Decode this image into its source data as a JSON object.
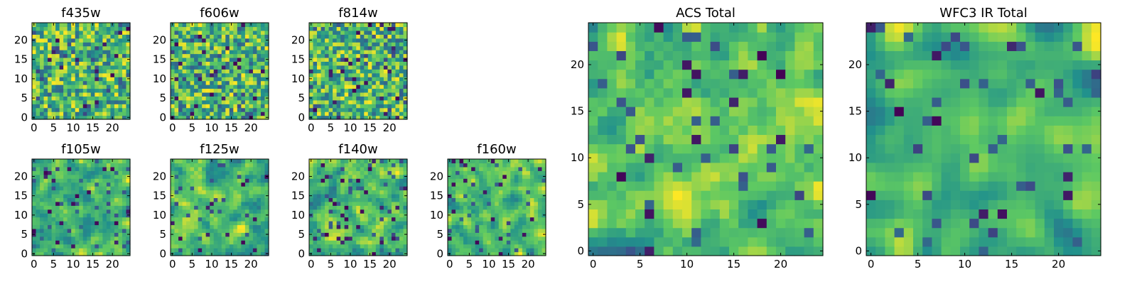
{
  "figure": {
    "description_colormap": "viridis"
  },
  "colormap": [
    "#440154",
    "#3b528b",
    "#21918c",
    "#5ec962",
    "#fde725"
  ],
  "chart_data": [
    {
      "type": "heatmap",
      "title": "f435w",
      "size": 25,
      "seed": 11,
      "smooth": 0,
      "darkFrac": 0.03,
      "xticks": [
        0,
        5,
        10,
        15,
        20
      ],
      "yticks": [
        0,
        5,
        10,
        15,
        20
      ],
      "xlim": [
        0,
        24
      ],
      "ylim": [
        0,
        24
      ]
    },
    {
      "type": "heatmap",
      "title": "f606w",
      "size": 25,
      "seed": 23,
      "smooth": 0,
      "darkFrac": 0.04,
      "xticks": [
        0,
        5,
        10,
        15,
        20
      ],
      "yticks": [
        0,
        5,
        10,
        15,
        20
      ],
      "xlim": [
        0,
        24
      ],
      "ylim": [
        0,
        24
      ]
    },
    {
      "type": "heatmap",
      "title": "f814w",
      "size": 25,
      "seed": 37,
      "smooth": 0,
      "darkFrac": 0.04,
      "xticks": [
        0,
        5,
        10,
        15,
        20
      ],
      "yticks": [
        0,
        5,
        10,
        15,
        20
      ],
      "xlim": [
        0,
        24
      ],
      "ylim": [
        0,
        24
      ]
    },
    {
      "type": "heatmap",
      "title": "f105w",
      "size": 25,
      "seed": 41,
      "smooth": 1,
      "darkFrac": 0.03,
      "xticks": [
        0,
        5,
        10,
        15,
        20
      ],
      "yticks": [
        0,
        5,
        10,
        15,
        20
      ],
      "xlim": [
        0,
        24
      ],
      "ylim": [
        0,
        24
      ]
    },
    {
      "type": "heatmap",
      "title": "f125w",
      "size": 25,
      "seed": 53,
      "smooth": 1,
      "darkFrac": 0.03,
      "xticks": [
        0,
        5,
        10,
        15,
        20
      ],
      "yticks": [
        0,
        5,
        10,
        15,
        20
      ],
      "xlim": [
        0,
        24
      ],
      "ylim": [
        0,
        24
      ]
    },
    {
      "type": "heatmap",
      "title": "f140w",
      "size": 25,
      "seed": 67,
      "smooth": 1,
      "darkFrac": 0.03,
      "xticks": [
        0,
        5,
        10,
        15,
        20
      ],
      "yticks": [
        0,
        5,
        10,
        15,
        20
      ],
      "xlim": [
        0,
        24
      ],
      "ylim": [
        0,
        24
      ]
    },
    {
      "type": "heatmap",
      "title": "f160w",
      "size": 25,
      "seed": 79,
      "smooth": 1,
      "darkFrac": 0.04,
      "xticks": [
        0,
        5,
        10,
        15,
        20
      ],
      "yticks": [
        0,
        5,
        10,
        15,
        20
      ],
      "xlim": [
        0,
        24
      ],
      "ylim": [
        0,
        24
      ]
    },
    {
      "type": "heatmap",
      "title": "ACS Total",
      "size": 25,
      "seed": 97,
      "smooth": 1,
      "darkFrac": 0.03,
      "xticks": [
        0,
        5,
        10,
        15,
        20
      ],
      "yticks": [
        0,
        5,
        10,
        15,
        20
      ],
      "xlim": [
        0,
        24
      ],
      "ylim": [
        0,
        24
      ]
    },
    {
      "type": "heatmap",
      "title": "WFC3 IR Total",
      "size": 25,
      "seed": 113,
      "smooth": 2,
      "darkFrac": 0.03,
      "xticks": [
        0,
        5,
        10,
        15,
        20
      ],
      "yticks": [
        0,
        5,
        10,
        15,
        20
      ],
      "xlim": [
        0,
        24
      ],
      "ylim": [
        0,
        24
      ]
    }
  ]
}
